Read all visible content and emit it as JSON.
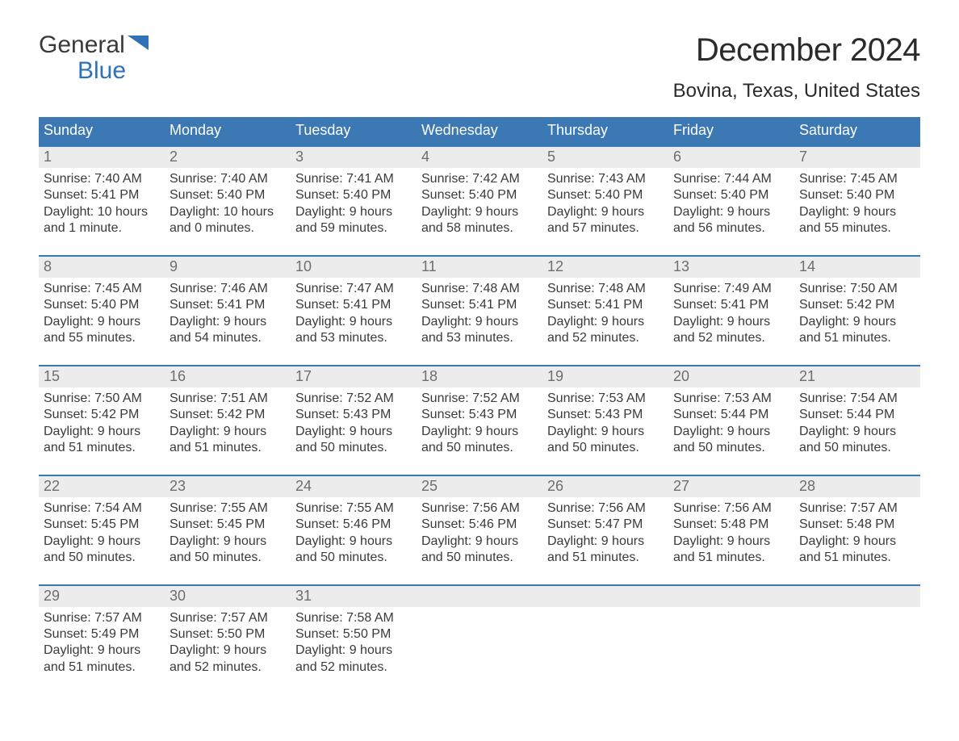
{
  "logo": {
    "word1": "General",
    "word2": "Blue",
    "flag_color": "#2f72b6"
  },
  "title": "December 2024",
  "location": "Bovina, Texas, United States",
  "header_bg": "#3b78b4",
  "daynum_bg": "#ececec",
  "accent_border": "#3b78b4",
  "day_names": [
    "Sunday",
    "Monday",
    "Tuesday",
    "Wednesday",
    "Thursday",
    "Friday",
    "Saturday"
  ],
  "weeks": [
    [
      {
        "n": "1",
        "sr": "7:40 AM",
        "ss": "5:41 PM",
        "dl": "10 hours and 1 minute."
      },
      {
        "n": "2",
        "sr": "7:40 AM",
        "ss": "5:40 PM",
        "dl": "10 hours and 0 minutes."
      },
      {
        "n": "3",
        "sr": "7:41 AM",
        "ss": "5:40 PM",
        "dl": "9 hours and 59 minutes."
      },
      {
        "n": "4",
        "sr": "7:42 AM",
        "ss": "5:40 PM",
        "dl": "9 hours and 58 minutes."
      },
      {
        "n": "5",
        "sr": "7:43 AM",
        "ss": "5:40 PM",
        "dl": "9 hours and 57 minutes."
      },
      {
        "n": "6",
        "sr": "7:44 AM",
        "ss": "5:40 PM",
        "dl": "9 hours and 56 minutes."
      },
      {
        "n": "7",
        "sr": "7:45 AM",
        "ss": "5:40 PM",
        "dl": "9 hours and 55 minutes."
      }
    ],
    [
      {
        "n": "8",
        "sr": "7:45 AM",
        "ss": "5:40 PM",
        "dl": "9 hours and 55 minutes."
      },
      {
        "n": "9",
        "sr": "7:46 AM",
        "ss": "5:41 PM",
        "dl": "9 hours and 54 minutes."
      },
      {
        "n": "10",
        "sr": "7:47 AM",
        "ss": "5:41 PM",
        "dl": "9 hours and 53 minutes."
      },
      {
        "n": "11",
        "sr": "7:48 AM",
        "ss": "5:41 PM",
        "dl": "9 hours and 53 minutes."
      },
      {
        "n": "12",
        "sr": "7:48 AM",
        "ss": "5:41 PM",
        "dl": "9 hours and 52 minutes."
      },
      {
        "n": "13",
        "sr": "7:49 AM",
        "ss": "5:41 PM",
        "dl": "9 hours and 52 minutes."
      },
      {
        "n": "14",
        "sr": "7:50 AM",
        "ss": "5:42 PM",
        "dl": "9 hours and 51 minutes."
      }
    ],
    [
      {
        "n": "15",
        "sr": "7:50 AM",
        "ss": "5:42 PM",
        "dl": "9 hours and 51 minutes."
      },
      {
        "n": "16",
        "sr": "7:51 AM",
        "ss": "5:42 PM",
        "dl": "9 hours and 51 minutes."
      },
      {
        "n": "17",
        "sr": "7:52 AM",
        "ss": "5:43 PM",
        "dl": "9 hours and 50 minutes."
      },
      {
        "n": "18",
        "sr": "7:52 AM",
        "ss": "5:43 PM",
        "dl": "9 hours and 50 minutes."
      },
      {
        "n": "19",
        "sr": "7:53 AM",
        "ss": "5:43 PM",
        "dl": "9 hours and 50 minutes."
      },
      {
        "n": "20",
        "sr": "7:53 AM",
        "ss": "5:44 PM",
        "dl": "9 hours and 50 minutes."
      },
      {
        "n": "21",
        "sr": "7:54 AM",
        "ss": "5:44 PM",
        "dl": "9 hours and 50 minutes."
      }
    ],
    [
      {
        "n": "22",
        "sr": "7:54 AM",
        "ss": "5:45 PM",
        "dl": "9 hours and 50 minutes."
      },
      {
        "n": "23",
        "sr": "7:55 AM",
        "ss": "5:45 PM",
        "dl": "9 hours and 50 minutes."
      },
      {
        "n": "24",
        "sr": "7:55 AM",
        "ss": "5:46 PM",
        "dl": "9 hours and 50 minutes."
      },
      {
        "n": "25",
        "sr": "7:56 AM",
        "ss": "5:46 PM",
        "dl": "9 hours and 50 minutes."
      },
      {
        "n": "26",
        "sr": "7:56 AM",
        "ss": "5:47 PM",
        "dl": "9 hours and 51 minutes."
      },
      {
        "n": "27",
        "sr": "7:56 AM",
        "ss": "5:48 PM",
        "dl": "9 hours and 51 minutes."
      },
      {
        "n": "28",
        "sr": "7:57 AM",
        "ss": "5:48 PM",
        "dl": "9 hours and 51 minutes."
      }
    ],
    [
      {
        "n": "29",
        "sr": "7:57 AM",
        "ss": "5:49 PM",
        "dl": "9 hours and 51 minutes."
      },
      {
        "n": "30",
        "sr": "7:57 AM",
        "ss": "5:50 PM",
        "dl": "9 hours and 52 minutes."
      },
      {
        "n": "31",
        "sr": "7:58 AM",
        "ss": "5:50 PM",
        "dl": "9 hours and 52 minutes."
      },
      null,
      null,
      null,
      null
    ]
  ],
  "labels": {
    "sunrise": "Sunrise: ",
    "sunset": "Sunset: ",
    "daylight": "Daylight: "
  }
}
